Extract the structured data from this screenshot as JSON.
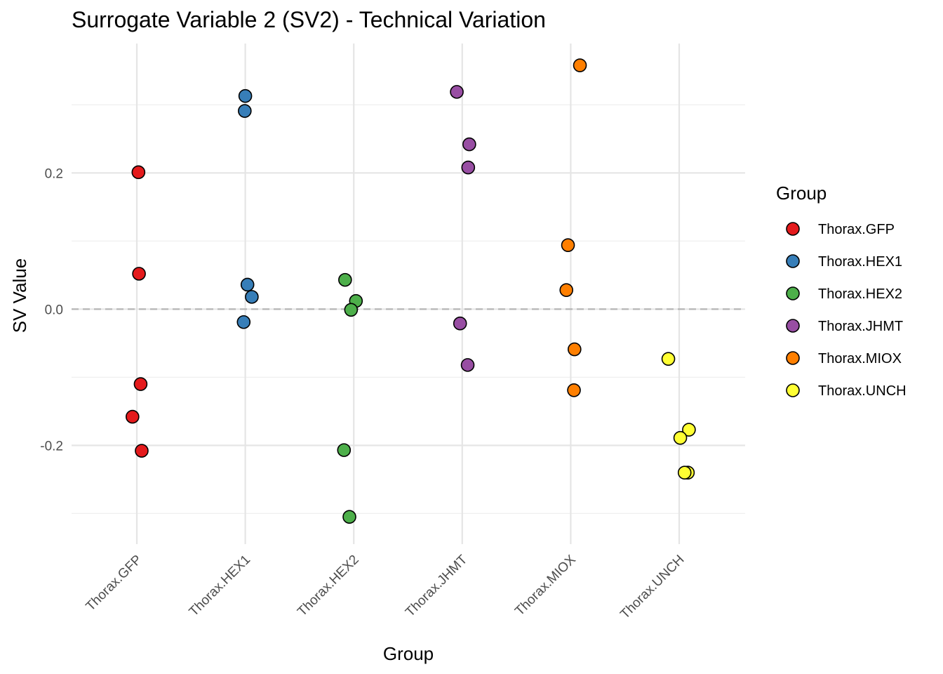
{
  "chart_data": {
    "type": "scatter",
    "title": "Surrogate Variable 2 (SV2) - Technical Variation",
    "xlabel": "Group",
    "ylabel": "SV Value",
    "categories": [
      "Thorax.GFP",
      "Thorax.HEX1",
      "Thorax.HEX2",
      "Thorax.JHMT",
      "Thorax.MIOX",
      "Thorax.UNCH"
    ],
    "ylim": [
      -0.345,
      0.39
    ],
    "yticks": [
      -0.2,
      0.0,
      0.2
    ],
    "ytick_labels": [
      "-0.2",
      "0.0",
      "0.2"
    ],
    "reference_line": 0.0,
    "legend": {
      "title": "Group",
      "position": "right"
    },
    "colors": {
      "Thorax.GFP": "#e41a1c",
      "Thorax.HEX1": "#377eb8",
      "Thorax.HEX2": "#4daf4a",
      "Thorax.JHMT": "#984ea3",
      "Thorax.MIOX": "#ff7f00",
      "Thorax.UNCH": "#ffff33"
    },
    "series": [
      {
        "name": "Thorax.GFP",
        "points": [
          {
            "jitter": 0.03,
            "y": 0.201
          },
          {
            "jitter": 0.04,
            "y": 0.052
          },
          {
            "jitter": 0.07,
            "y": -0.11
          },
          {
            "jitter": -0.08,
            "y": -0.158
          },
          {
            "jitter": 0.09,
            "y": -0.208
          }
        ]
      },
      {
        "name": "Thorax.HEX1",
        "points": [
          {
            "jitter": 0.0,
            "y": 0.313
          },
          {
            "jitter": -0.01,
            "y": 0.291
          },
          {
            "jitter": 0.04,
            "y": 0.036
          },
          {
            "jitter": 0.12,
            "y": 0.018
          },
          {
            "jitter": -0.03,
            "y": -0.019
          }
        ]
      },
      {
        "name": "Thorax.HEX2",
        "points": [
          {
            "jitter": -0.16,
            "y": 0.043
          },
          {
            "jitter": 0.04,
            "y": 0.012
          },
          {
            "jitter": -0.05,
            "y": -0.001
          },
          {
            "jitter": -0.18,
            "y": -0.207
          },
          {
            "jitter": -0.08,
            "y": -0.305
          }
        ]
      },
      {
        "name": "Thorax.JHMT",
        "points": [
          {
            "jitter": -0.1,
            "y": 0.319
          },
          {
            "jitter": 0.13,
            "y": 0.242
          },
          {
            "jitter": 0.11,
            "y": 0.208
          },
          {
            "jitter": -0.04,
            "y": -0.021
          },
          {
            "jitter": 0.1,
            "y": -0.082
          }
        ]
      },
      {
        "name": "Thorax.MIOX",
        "points": [
          {
            "jitter": 0.17,
            "y": 0.358
          },
          {
            "jitter": -0.05,
            "y": 0.094
          },
          {
            "jitter": -0.08,
            "y": 0.028
          },
          {
            "jitter": 0.07,
            "y": -0.059
          },
          {
            "jitter": 0.06,
            "y": -0.119
          }
        ]
      },
      {
        "name": "Thorax.UNCH",
        "points": [
          {
            "jitter": -0.2,
            "y": -0.073
          },
          {
            "jitter": 0.18,
            "y": -0.177
          },
          {
            "jitter": 0.02,
            "y": -0.189
          },
          {
            "jitter": 0.16,
            "y": -0.24
          },
          {
            "jitter": 0.1,
            "y": -0.24
          }
        ]
      }
    ]
  }
}
